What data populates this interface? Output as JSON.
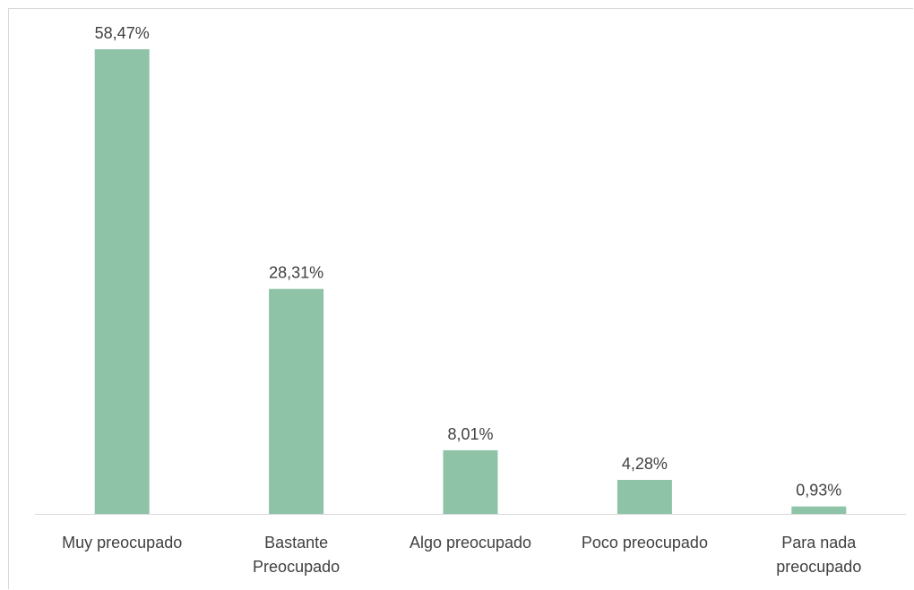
{
  "chart_data": {
    "type": "bar",
    "categories": [
      [
        "Muy preocupado"
      ],
      [
        "Bastante",
        "Preocupado"
      ],
      [
        "Algo preocupado"
      ],
      [
        "Poco preocupado"
      ],
      [
        "Para nada",
        "preocupado"
      ]
    ],
    "values": [
      58.47,
      28.31,
      8.01,
      4.28,
      0.93
    ],
    "data_labels": [
      "58,47%",
      "28,31%",
      "8,01%",
      "4,28%",
      "0,93%"
    ],
    "ylim": [
      0,
      58.47
    ],
    "grid": false,
    "legend": "none",
    "bar_color": "#8fc3a7",
    "axis_color": "#d9d9d9",
    "text_color": "#404040"
  }
}
